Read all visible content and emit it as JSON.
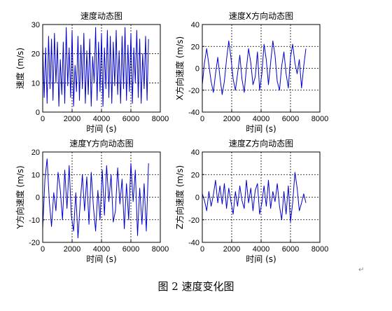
{
  "figure": {
    "caption": "图 2  速度变化图",
    "return_mark": "↵"
  },
  "colors": {
    "line": "#0000cc",
    "axes": "#000000",
    "grid": "#000000"
  },
  "chart_data": [
    {
      "type": "line",
      "title": "速度动态图",
      "xlabel": "时间 (s)",
      "ylabel": "速度 (m/s)",
      "xlim": [
        0,
        8000
      ],
      "ylim": [
        0,
        30
      ],
      "xticks": [
        0,
        2000,
        4000,
        6000,
        8000
      ],
      "yticks": [
        0,
        10,
        20,
        30
      ],
      "grid": true,
      "series": [
        {
          "x": [
            0,
            100,
            200,
            300,
            400,
            500,
            600,
            700,
            800,
            900,
            1000,
            1100,
            1200,
            1300,
            1400,
            1500,
            1600,
            1700,
            1800,
            1900,
            2000,
            2100,
            2200,
            2300,
            2400,
            2500,
            2600,
            2700,
            2800,
            2900,
            3000,
            3100,
            3200,
            3300,
            3400,
            3500,
            3600,
            3700,
            3800,
            3900,
            4000,
            4100,
            4200,
            4300,
            4400,
            4500,
            4600,
            4700,
            4800,
            4900,
            5000,
            5100,
            5200,
            5300,
            5400,
            5500,
            5600,
            5700,
            5800,
            5900,
            6000,
            6100,
            6200,
            6300,
            6400,
            6500,
            6600,
            6700,
            6800,
            6900,
            7000,
            7100,
            7200
          ],
          "y": [
            23,
            5,
            22,
            3,
            26,
            8,
            25,
            4,
            27,
            10,
            24,
            2,
            18,
            6,
            24,
            3,
            29,
            9,
            22,
            5,
            28,
            2,
            16,
            7,
            26,
            4,
            23,
            8,
            27,
            3,
            21,
            6,
            25,
            2,
            19,
            10,
            29,
            4,
            24,
            7,
            27,
            2,
            22,
            8,
            28,
            5,
            26,
            3,
            24,
            9,
            28,
            6,
            21,
            3,
            26,
            8,
            29,
            4,
            23,
            7,
            27,
            3,
            22,
            10,
            28,
            5,
            25,
            3,
            20,
            8,
            26,
            4,
            25
          ]
        }
      ]
    },
    {
      "type": "line",
      "title": "速度X方向动态图",
      "xlabel": "时间 (s)",
      "ylabel": "X方向速度 (m/s)",
      "xlim": [
        0,
        8000
      ],
      "ylim": [
        -40,
        40
      ],
      "xticks": [
        0,
        2000,
        4000,
        6000,
        8000
      ],
      "yticks": [
        -40,
        -20,
        0,
        20,
        40
      ],
      "grid": true,
      "series": [
        {
          "x": [
            0,
            150,
            300,
            450,
            600,
            750,
            900,
            1050,
            1200,
            1350,
            1500,
            1650,
            1800,
            1950,
            2100,
            2250,
            2400,
            2550,
            2700,
            2850,
            3000,
            3150,
            3300,
            3450,
            3600,
            3750,
            3900,
            4050,
            4200,
            4350,
            4500,
            4650,
            4800,
            4950,
            5100,
            5250,
            5400,
            5550,
            5700,
            5850,
            6000,
            6150,
            6300,
            6450,
            6600,
            6750,
            6900,
            7050
          ],
          "y": [
            -15,
            5,
            18,
            3,
            -12,
            -22,
            -5,
            10,
            -8,
            -24,
            -12,
            8,
            25,
            10,
            -10,
            -20,
            -5,
            12,
            -10,
            -22,
            0,
            18,
            5,
            -15,
            -8,
            15,
            -20,
            -5,
            22,
            8,
            -15,
            5,
            25,
            12,
            -12,
            -20,
            2,
            15,
            -5,
            -18,
            10,
            22,
            5,
            -5,
            8,
            -18,
            2,
            18
          ]
        }
      ]
    },
    {
      "type": "line",
      "title": "速度Y方向动态图",
      "xlabel": "时间 (s)",
      "ylabel": "Y方向速度 (m/s)",
      "xlim": [
        0,
        8000
      ],
      "ylim": [
        -20,
        20
      ],
      "xticks": [
        0,
        2000,
        4000,
        6000,
        8000
      ],
      "yticks": [
        -20,
        -10,
        0,
        10,
        20
      ],
      "grid": true,
      "series": [
        {
          "x": [
            0,
            150,
            300,
            450,
            600,
            750,
            900,
            1050,
            1200,
            1350,
            1500,
            1650,
            1800,
            1950,
            2100,
            2250,
            2400,
            2550,
            2700,
            2850,
            3000,
            3150,
            3300,
            3450,
            3600,
            3750,
            3900,
            4050,
            4200,
            4350,
            4500,
            4650,
            4800,
            4950,
            5100,
            5250,
            5400,
            5550,
            5700,
            5850,
            6000,
            6150,
            6300,
            6450,
            6600,
            6750,
            6900,
            7050,
            7200
          ],
          "y": [
            -14,
            8,
            17,
            -2,
            -13,
            2,
            -6,
            11,
            3,
            -10,
            12,
            -5,
            14,
            -8,
            -15,
            2,
            -18,
            -3,
            10,
            -6,
            9,
            -12,
            11,
            -4,
            -15,
            3,
            -10,
            12,
            -8,
            14,
            -2,
            10,
            -11,
            -6,
            13,
            -3,
            8,
            -14,
            6,
            -10,
            15,
            -2,
            12,
            -17,
            4,
            -12,
            6,
            -15,
            15
          ]
        }
      ]
    },
    {
      "type": "line",
      "title": "速度Z方向动态图",
      "xlabel": "时间 (s)",
      "ylabel": "Z方向速度 (m/s)",
      "xlim": [
        0,
        8000
      ],
      "ylim": [
        -40,
        40
      ],
      "xticks": [
        0,
        2000,
        4000,
        6000,
        8000
      ],
      "yticks": [
        -40,
        -20,
        0,
        20,
        40
      ],
      "grid": true,
      "series": [
        {
          "x": [
            0,
            150,
            300,
            450,
            600,
            750,
            900,
            1050,
            1200,
            1350,
            1500,
            1650,
            1800,
            1950,
            2100,
            2250,
            2400,
            2550,
            2700,
            2850,
            3000,
            3150,
            3300,
            3450,
            3600,
            3750,
            3900,
            4050,
            4200,
            4350,
            4500,
            4650,
            4800,
            4950,
            5100,
            5250,
            5400,
            5550,
            5700,
            5850,
            6000,
            6150,
            6300,
            6450,
            6600,
            6750,
            6900,
            7050
          ],
          "y": [
            3,
            -3,
            -12,
            5,
            -8,
            2,
            15,
            -5,
            10,
            -6,
            12,
            -10,
            8,
            -4,
            -15,
            5,
            -8,
            10,
            -3,
            -10,
            15,
            -5,
            8,
            -12,
            6,
            12,
            -15,
            -5,
            10,
            -8,
            15,
            -10,
            5,
            -4,
            12,
            -8,
            -20,
            5,
            -15,
            10,
            -22,
            -5,
            22,
            8,
            -12,
            -5,
            3,
            -5
          ]
        }
      ]
    }
  ]
}
